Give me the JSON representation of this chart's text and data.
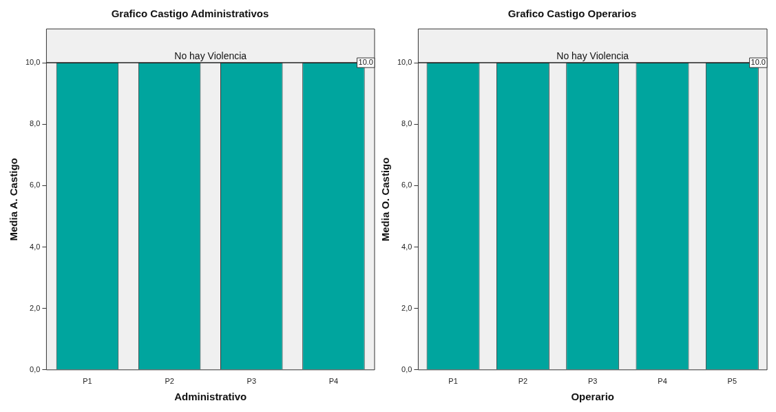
{
  "chart_data": [
    {
      "type": "bar",
      "title": "Grafico Castigo Administrativos",
      "xlabel": "Administrativo",
      "ylabel": "Media A. Castigo",
      "categories": [
        "P1",
        "P2",
        "P3",
        "P4"
      ],
      "values": [
        10,
        10,
        10,
        10
      ],
      "color": "#00a59e",
      "ylim": [
        0,
        11.1
      ],
      "yticks": [
        {
          "value": 0,
          "label": "0,0"
        },
        {
          "value": 2,
          "label": "2,0"
        },
        {
          "value": 4,
          "label": "4,0"
        },
        {
          "value": 6,
          "label": "6,0"
        },
        {
          "value": 8,
          "label": "8,0"
        },
        {
          "value": 10,
          "label": "10,0"
        }
      ],
      "grid": false,
      "legend": false,
      "ref_lines": [
        {
          "axis": "y",
          "value": 10,
          "label": "No hay Violencia"
        }
      ],
      "annotations": [
        {
          "text": "10.0",
          "y": 10
        }
      ]
    },
    {
      "type": "bar",
      "title": "Grafico Castigo Operarios",
      "xlabel": "Operario",
      "ylabel": "Media O. Castigo",
      "categories": [
        "P1",
        "P2",
        "P3",
        "P4",
        "P5"
      ],
      "values": [
        10,
        10,
        10,
        10,
        10
      ],
      "color": "#00a59e",
      "ylim": [
        0,
        11.1
      ],
      "yticks": [
        {
          "value": 0,
          "label": "0,0"
        },
        {
          "value": 2,
          "label": "2,0"
        },
        {
          "value": 4,
          "label": "4,0"
        },
        {
          "value": 6,
          "label": "6,0"
        },
        {
          "value": 8,
          "label": "8,0"
        },
        {
          "value": 10,
          "label": "10,0"
        }
      ],
      "grid": false,
      "legend": false,
      "ref_lines": [
        {
          "axis": "y",
          "value": 10,
          "label": "No hay Violencia"
        }
      ],
      "annotations": [
        {
          "text": "10.0",
          "y": 10
        }
      ]
    }
  ]
}
